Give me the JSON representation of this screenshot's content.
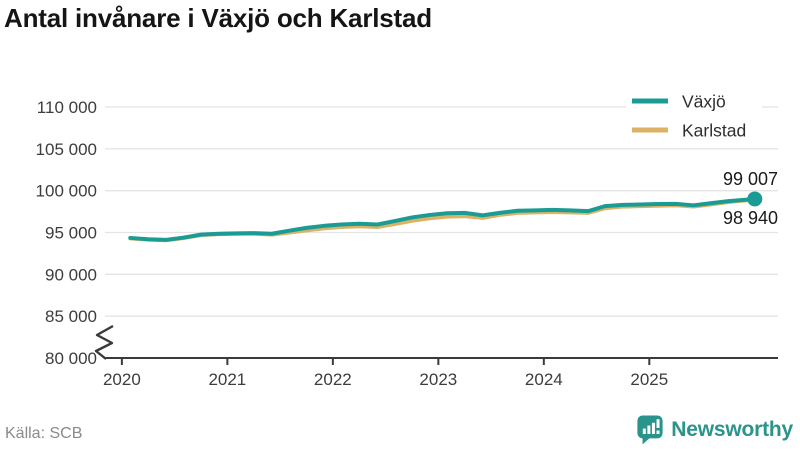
{
  "title": "Antal invånare i Växjö och Karlstad",
  "source": "Källa: SCB",
  "branding": {
    "name": "Newsworthy",
    "color": "#2a948c"
  },
  "colors": {
    "karlstad": "#dcb366",
    "vaxjo": "#1a9c94",
    "grid": "#e4e4e4",
    "axis": "#3a3a3a",
    "tick_text": "#3d3d3d",
    "title_text": "#151515",
    "source_text": "#8a8a8a",
    "brand_teal": "#2a948c"
  },
  "chart_data": {
    "type": "line",
    "title": "Antal invånare i Växjö och Karlstad",
    "xlabel": "",
    "ylabel": "",
    "grid": "horizontal",
    "legend_position": "top-right",
    "axis_break": true,
    "ylim": [
      80000,
      110000
    ],
    "x_range": [
      2019.84,
      2026.22
    ],
    "x_ticks": [
      2020,
      2021,
      2022,
      2023,
      2024,
      2025
    ],
    "y_ticks": {
      "values": [
        110000,
        105000,
        100000,
        95000,
        90000,
        85000,
        80000
      ],
      "labels": [
        "110 000",
        "105 000",
        "100 000",
        "95 000",
        "90 000",
        "85 000",
        "80 000"
      ]
    },
    "x": [
      2020.08,
      2020.25,
      2020.42,
      2020.58,
      2020.75,
      2020.92,
      2021.08,
      2021.25,
      2021.42,
      2021.58,
      2021.75,
      2021.92,
      2022.08,
      2022.25,
      2022.42,
      2022.58,
      2022.75,
      2022.92,
      2023.08,
      2023.25,
      2023.42,
      2023.58,
      2023.75,
      2023.92,
      2024.08,
      2024.25,
      2024.42,
      2024.58,
      2024.75,
      2024.92,
      2025.08,
      2025.25,
      2025.42,
      2025.58,
      2025.75,
      2026.0
    ],
    "series": [
      {
        "name": "Karlstad",
        "color": "#dcb366",
        "end_label": "98 940",
        "end_value": 98940,
        "end_dot": false,
        "values": [
          94300,
          94150,
          94080,
          94330,
          94700,
          94800,
          94850,
          94870,
          94750,
          94980,
          95250,
          95500,
          95650,
          95750,
          95650,
          96000,
          96400,
          96700,
          96900,
          96950,
          96750,
          97100,
          97350,
          97400,
          97450,
          97400,
          97350,
          97900,
          98100,
          98150,
          98200,
          98250,
          98100,
          98350,
          98650,
          98940
        ]
      },
      {
        "name": "Växjö",
        "color": "#1a9c94",
        "end_label": "99 007",
        "end_value": 99007,
        "end_dot": true,
        "values": [
          94350,
          94200,
          94120,
          94380,
          94750,
          94850,
          94900,
          94920,
          94850,
          95200,
          95550,
          95800,
          95950,
          96050,
          95950,
          96350,
          96800,
          97100,
          97300,
          97350,
          97050,
          97350,
          97600,
          97650,
          97700,
          97650,
          97550,
          98150,
          98300,
          98350,
          98400,
          98420,
          98250,
          98500,
          98750,
          99007
        ]
      }
    ]
  }
}
